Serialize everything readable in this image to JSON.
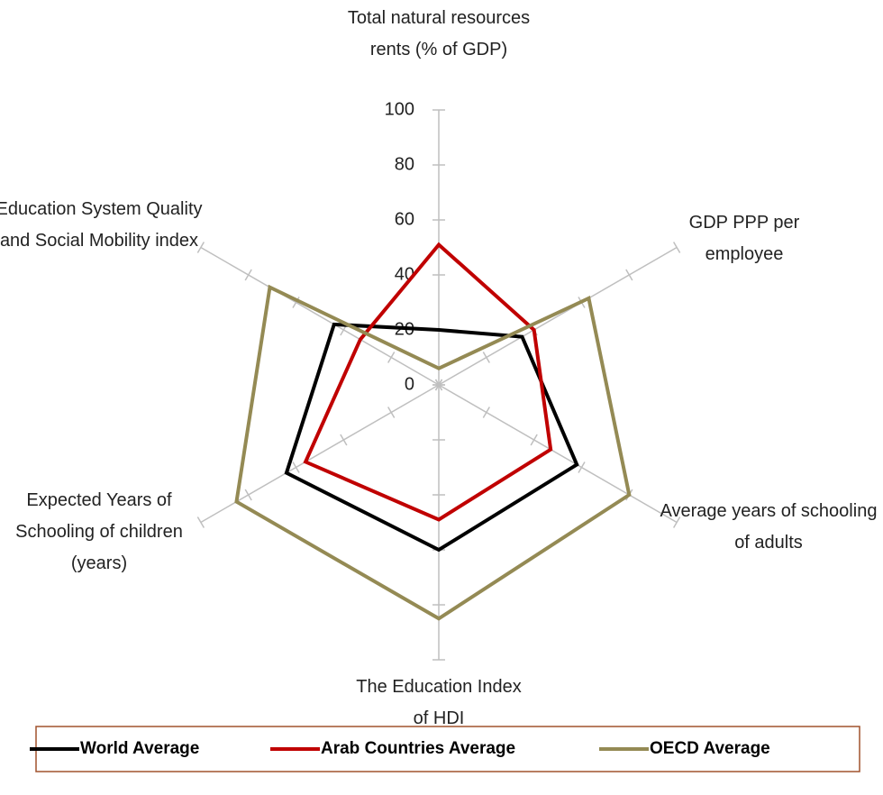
{
  "chart_data": {
    "type": "radar",
    "categories": [
      "Total natural resources rents (% of GDP)",
      "GDP PPP per employee",
      "Average years of schooling of adults",
      "The Education Index of HDI",
      "Expected Years of Schooling of children (years)",
      "Education System Quality and Social Mobility index"
    ],
    "series": [
      {
        "name": "World Average",
        "color": "#000000",
        "values": [
          20,
          35,
          58,
          60,
          64,
          44
        ]
      },
      {
        "name": "Arab Countries Average",
        "color": "#c00000",
        "values": [
          51,
          40,
          47,
          49,
          56,
          33
        ]
      },
      {
        "name": "OECD Average",
        "color": "#948a54",
        "values": [
          6,
          63,
          80,
          85,
          85,
          71
        ]
      }
    ],
    "ylim": [
      0,
      100
    ],
    "yticks": [
      0,
      20,
      40,
      60,
      80,
      100
    ],
    "legend": "bottom"
  }
}
